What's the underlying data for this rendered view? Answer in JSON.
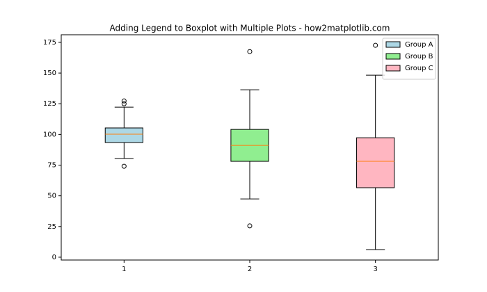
{
  "chart_data": {
    "type": "boxplot",
    "title": "Adding Legend to Boxplot with Multiple Plots - how2matplotlib.com",
    "x": [
      1,
      2,
      3
    ],
    "xlim": [
      0.5,
      3.5
    ],
    "xticks": [
      1,
      2,
      3
    ],
    "ylim": [
      -2.3,
      181.2
    ],
    "yticks": [
      0,
      25,
      50,
      75,
      100,
      125,
      150,
      175
    ],
    "median_color": "#ff7f0e",
    "legend": "upper right",
    "series": [
      {
        "name": "Group A",
        "color": "#add8e6",
        "whislo": 80.4,
        "q1": 93.4,
        "med": 100.2,
        "q3": 105.3,
        "whishi": 122.2,
        "fliers": [
          127.3,
          125.0,
          74.1
        ]
      },
      {
        "name": "Group B",
        "color": "#90ee90",
        "whislo": 47.5,
        "q1": 78.1,
        "med": 91.1,
        "q3": 104.1,
        "whishi": 136.4,
        "fliers": [
          167.5,
          25.5
        ]
      },
      {
        "name": "Group C",
        "color": "#ffb6c1",
        "whislo": 6.2,
        "q1": 56.6,
        "med": 78.1,
        "q3": 97.3,
        "whishi": 148.3,
        "fliers": [
          172.6
        ]
      }
    ]
  }
}
